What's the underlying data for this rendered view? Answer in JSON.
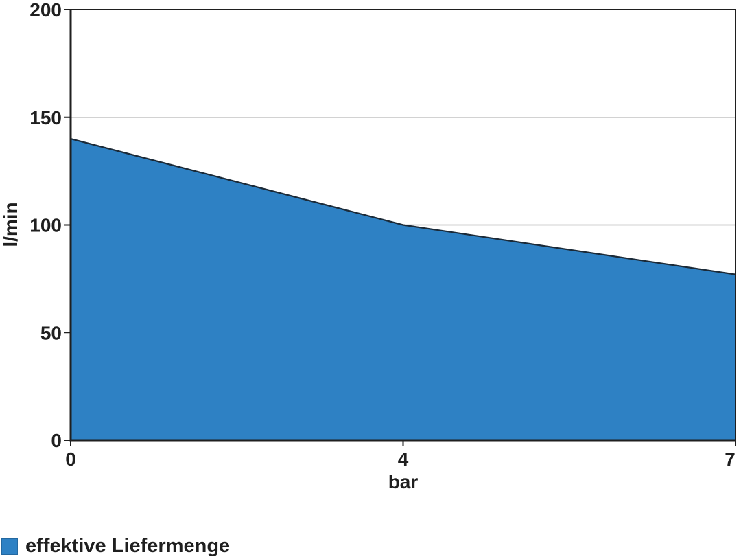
{
  "chart_data": {
    "type": "area",
    "categories": [
      "0",
      "4",
      "7"
    ],
    "x": [
      0,
      4,
      7
    ],
    "series": [
      {
        "name": "effektive Liefermenge",
        "values": [
          140,
          100,
          77
        ]
      }
    ],
    "title": "",
    "xlabel": "bar",
    "ylabel": "l/min",
    "ylim": [
      0,
      200
    ],
    "yticks": [
      0,
      50,
      100,
      150,
      200
    ],
    "grid": true,
    "legend_position": "bottom-left",
    "colors": {
      "area_fill": "#2E81C4",
      "area_line": "#1B2A38",
      "grid_line": "#A6A6A6",
      "axis_line": "#1F1F1F",
      "text": "#1F1F1F",
      "background": "#FFFFFF"
    }
  }
}
